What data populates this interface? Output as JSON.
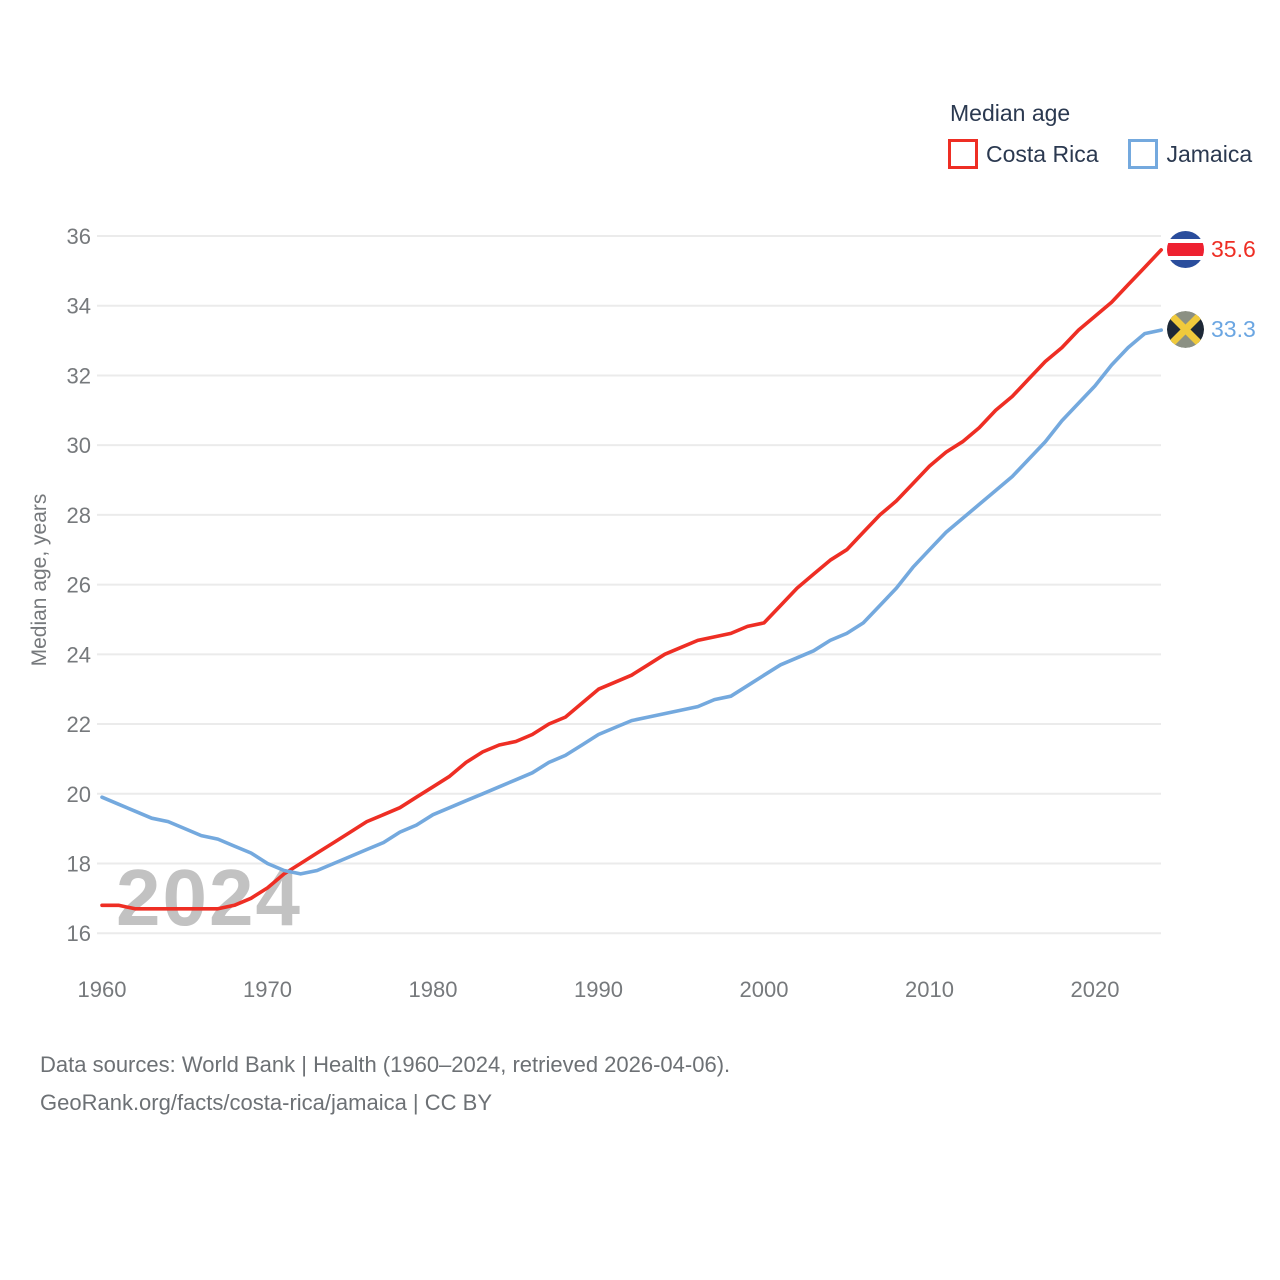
{
  "legend": {
    "title": "Median age",
    "series": [
      {
        "label": "Costa Rica",
        "color": "#ee2e24"
      },
      {
        "label": "Jamaica",
        "color": "#74a9de"
      }
    ]
  },
  "end_labels": [
    {
      "value": "35.6",
      "color": "#ee2e24",
      "flag": "costa-rica-flag"
    },
    {
      "value": "33.3",
      "color": "#6ba6e2",
      "flag": "jamaica-flag"
    }
  ],
  "watermark": "2024",
  "footer": {
    "line1": "Data sources: World Bank | Health (1960–2024, retrieved 2026-04-06).",
    "line2": "GeoRank.org/facts/costa-rica/jamaica | CC BY"
  },
  "chart_data": {
    "type": "line",
    "title": "Median age",
    "xlabel": "",
    "ylabel": "Median age, years",
    "grid": true,
    "legend_position": "top-right",
    "ylim": [
      15.7,
      36.6
    ],
    "yticks": [
      16,
      18,
      20,
      22,
      24,
      26,
      28,
      30,
      32,
      34,
      36
    ],
    "xticks": [
      1960,
      1970,
      1980,
      1990,
      2000,
      2010,
      2020
    ],
    "x": [
      1960,
      1961,
      1962,
      1963,
      1964,
      1965,
      1966,
      1967,
      1968,
      1969,
      1970,
      1971,
      1972,
      1973,
      1974,
      1975,
      1976,
      1977,
      1978,
      1979,
      1980,
      1981,
      1982,
      1983,
      1984,
      1985,
      1986,
      1987,
      1988,
      1989,
      1990,
      1991,
      1992,
      1993,
      1994,
      1995,
      1996,
      1997,
      1998,
      1999,
      2000,
      2001,
      2002,
      2003,
      2004,
      2005,
      2006,
      2007,
      2008,
      2009,
      2010,
      2011,
      2012,
      2013,
      2014,
      2015,
      2016,
      2017,
      2018,
      2019,
      2020,
      2021,
      2022,
      2023,
      2024
    ],
    "series": [
      {
        "name": "Costa Rica",
        "color": "#ee2e24",
        "end_label": "35.6",
        "values": [
          16.8,
          16.8,
          16.7,
          16.7,
          16.7,
          16.7,
          16.7,
          16.7,
          16.8,
          17.0,
          17.3,
          17.7,
          18.0,
          18.3,
          18.6,
          18.9,
          19.2,
          19.4,
          19.6,
          19.9,
          20.2,
          20.5,
          20.9,
          21.2,
          21.4,
          21.5,
          21.7,
          22.0,
          22.2,
          22.6,
          23.0,
          23.2,
          23.4,
          23.7,
          24.0,
          24.2,
          24.4,
          24.5,
          24.6,
          24.8,
          24.9,
          25.4,
          25.9,
          26.3,
          26.7,
          27.0,
          27.5,
          28.0,
          28.4,
          28.9,
          29.4,
          29.8,
          30.1,
          30.5,
          31.0,
          31.4,
          31.9,
          32.4,
          32.8,
          33.3,
          33.7,
          34.1,
          34.6,
          35.1,
          35.6
        ]
      },
      {
        "name": "Jamaica",
        "color": "#74a9de",
        "end_label": "33.3",
        "values": [
          19.9,
          19.7,
          19.5,
          19.3,
          19.2,
          19.0,
          18.8,
          18.7,
          18.5,
          18.3,
          18.0,
          17.8,
          17.7,
          17.8,
          18.0,
          18.2,
          18.4,
          18.6,
          18.9,
          19.1,
          19.4,
          19.6,
          19.8,
          20.0,
          20.2,
          20.4,
          20.6,
          20.9,
          21.1,
          21.4,
          21.7,
          21.9,
          22.1,
          22.2,
          22.3,
          22.4,
          22.5,
          22.7,
          22.8,
          23.1,
          23.4,
          23.7,
          23.9,
          24.1,
          24.4,
          24.6,
          24.9,
          25.4,
          25.9,
          26.5,
          27.0,
          27.5,
          27.9,
          28.3,
          28.7,
          29.1,
          29.6,
          30.1,
          30.7,
          31.2,
          31.7,
          32.3,
          32.8,
          33.2,
          33.3
        ]
      }
    ]
  }
}
